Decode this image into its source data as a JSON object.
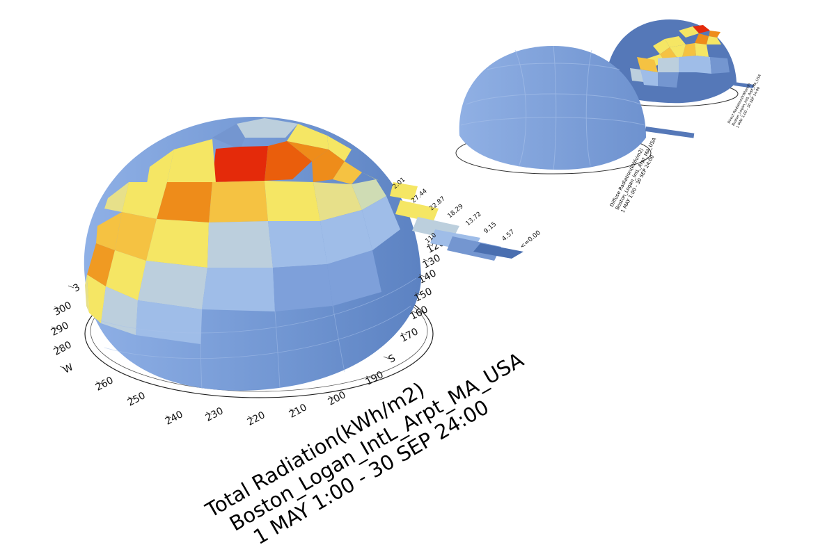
{
  "chart_data": [
    {
      "type": "heatmap",
      "subtype": "sky-dome",
      "title_lines": [
        "Total Radiation(kWh/m2)",
        "Boston_Logan_IntL_Arpt_MA_USA",
        "1 MAY 1:00 - 30 SEP 24:00"
      ],
      "azimuth_labels": [
        "120",
        "130",
        "140",
        "150",
        "160",
        "170",
        "S",
        "190",
        "200",
        "210",
        "220",
        "230",
        "240",
        "250",
        "260",
        "W",
        "280",
        "290",
        "300",
        "3"
      ],
      "legend": {
        "labels": [
          "27.44",
          "22.87",
          "18.29",
          "13.72",
          "9.15",
          "4.57",
          "<=0.00"
        ],
        "top_label": "2.01",
        "first_label": "110"
      }
    },
    {
      "type": "heatmap",
      "subtype": "sky-dome",
      "title_lines": [
        "Diffuse Radiation(kWh/m2)",
        "Boston_Logan_IntL_Arpt_MA_USA",
        "1 MAY 1:00 - 30 SEP 24:00"
      ]
    },
    {
      "type": "heatmap",
      "subtype": "sky-dome",
      "title_lines": [
        "Direct Radiation(kWh/m2)",
        "Boston_Logan_IntL_Arpt_MA_USA",
        "1 MAY 1:00 - 30 SEP 24:00"
      ]
    }
  ],
  "colors": {
    "blue_dark": "#4a6fb0",
    "blue": "#7496d0",
    "blue_light": "#9fbde8",
    "grey_blue": "#bccfdd",
    "yellow": "#f5e664",
    "orange_light": "#f5c242",
    "orange": "#ee8c1a",
    "red_orange": "#ea5e0c",
    "red": "#e42a0a"
  }
}
